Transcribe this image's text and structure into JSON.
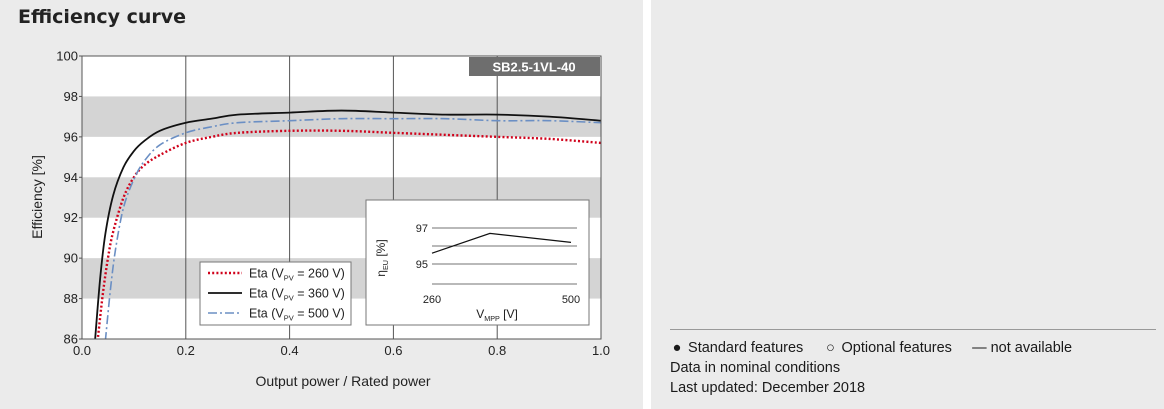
{
  "section_title": "Efficiency curve",
  "footer": {
    "legend_standard": "Standard features",
    "legend_optional": "Optional features",
    "legend_not_available": "— not available",
    "symbol_standard": "●",
    "symbol_optional": "○",
    "data_note": "Data in nominal conditions",
    "updated": "Last updated: December 2018"
  },
  "chart_data": [
    {
      "type": "line",
      "badge": "SB2.5-1VL-40",
      "xlabel": "Output power / Rated power",
      "ylabel": "Efficiency [%]",
      "xlim": [
        0,
        1.0
      ],
      "ylim": [
        86,
        100
      ],
      "x_ticks": [
        "0.0",
        "0.2",
        "0.4",
        "0.6",
        "0.8",
        "1.0"
      ],
      "y_ticks": [
        "86",
        "88",
        "90",
        "92",
        "94",
        "96",
        "98",
        "100"
      ],
      "grid": "vertical lines + alternating grey horizontal bands",
      "legend_position": "bottom-left",
      "series": [
        {
          "name": "Eta (VPV = 260 V)",
          "legend": {
            "pre": "Eta (V",
            "sub": "PV",
            "post": " = 260 V)"
          },
          "color": "#d0021b",
          "style": "dotted",
          "x": [
            0.03,
            0.04,
            0.05,
            0.06,
            0.08,
            0.1,
            0.12,
            0.15,
            0.2,
            0.25,
            0.3,
            0.4,
            0.5,
            0.6,
            0.7,
            0.8,
            0.9,
            1.0
          ],
          "y": [
            85.9,
            88.2,
            90.0,
            91.3,
            93.0,
            94.0,
            94.6,
            95.1,
            95.7,
            96.0,
            96.2,
            96.3,
            96.3,
            96.2,
            96.1,
            96.0,
            95.9,
            95.7
          ]
        },
        {
          "name": "Eta (VPV = 360 V)",
          "legend": {
            "pre": "Eta (V",
            "sub": "PV",
            "post": " = 360 V)"
          },
          "color": "#111111",
          "style": "solid",
          "x": [
            0.025,
            0.035,
            0.045,
            0.06,
            0.08,
            0.1,
            0.12,
            0.15,
            0.2,
            0.25,
            0.3,
            0.4,
            0.5,
            0.6,
            0.7,
            0.8,
            0.9,
            1.0
          ],
          "y": [
            85.9,
            89.0,
            91.2,
            93.1,
            94.5,
            95.3,
            95.8,
            96.3,
            96.7,
            96.9,
            97.1,
            97.2,
            97.3,
            97.2,
            97.1,
            97.1,
            97.0,
            96.8
          ]
        },
        {
          "name": "Eta (VPV = 500 V)",
          "legend": {
            "pre": "Eta (V",
            "sub": "PV",
            "post": " = 500 V)"
          },
          "color": "#6b8fc4",
          "style": "dashdot",
          "x": [
            0.045,
            0.055,
            0.065,
            0.08,
            0.1,
            0.12,
            0.15,
            0.2,
            0.25,
            0.3,
            0.4,
            0.5,
            0.6,
            0.7,
            0.8,
            0.9,
            1.0
          ],
          "y": [
            85.9,
            88.5,
            90.5,
            92.5,
            93.9,
            94.8,
            95.6,
            96.2,
            96.5,
            96.7,
            96.8,
            96.9,
            96.9,
            96.9,
            96.8,
            96.8,
            96.7
          ]
        }
      ]
    },
    {
      "type": "line",
      "xlabel": {
        "pre": "V",
        "sub": "MPP",
        "post": " [V]"
      },
      "ylabel": {
        "pre": "η",
        "sub": "EU",
        "post": " [%]"
      },
      "xlim": [
        260,
        500
      ],
      "ylim": [
        94,
        98
      ],
      "x_ticks": [
        "260",
        "500"
      ],
      "y_ticks": [
        "95",
        "97"
      ],
      "series": [
        {
          "color": "#111111",
          "x": [
            260,
            360,
            500
          ],
          "y": [
            95.6,
            96.7,
            96.2
          ]
        }
      ]
    }
  ]
}
